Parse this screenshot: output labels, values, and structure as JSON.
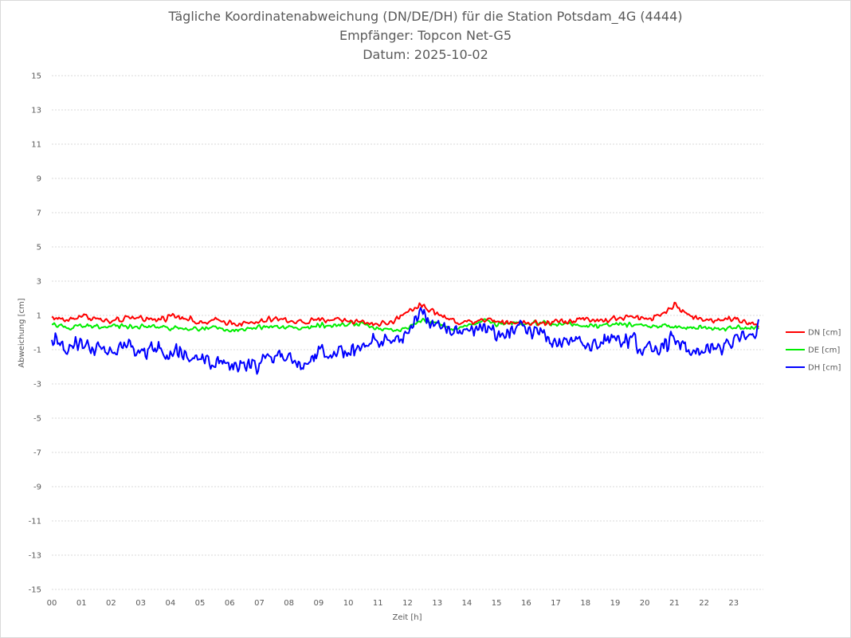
{
  "chart_data": {
    "type": "line",
    "title": "Tägliche Koordinatenabweichung (DN/DE/DH) für die Station Potsdam_4G (4444)",
    "subtitle": "Empfänger: Topcon Net-G5",
    "date_label": "Datum: 2025-10-02",
    "xlabel": "Zeit [h]",
    "ylabel": "Abweichung [cm]",
    "xlim": [
      0,
      24
    ],
    "ylim": [
      -15,
      15
    ],
    "x_ticks": [
      "00",
      "01",
      "02",
      "03",
      "04",
      "05",
      "06",
      "07",
      "08",
      "09",
      "10",
      "11",
      "12",
      "13",
      "14",
      "15",
      "16",
      "17",
      "18",
      "19",
      "20",
      "21",
      "22",
      "23"
    ],
    "y_ticks": [
      15,
      13,
      11,
      9,
      7,
      5,
      3,
      1,
      -1,
      -3,
      -5,
      -7,
      -9,
      -11,
      -13,
      -15
    ],
    "y_tick_labels": [
      "15",
      "13",
      "11",
      "9",
      "7",
      "5",
      "3",
      "1",
      "-1",
      "-3",
      "-5",
      "-7",
      "-9",
      "-11",
      "-13",
      "-15"
    ],
    "grid": "horizontal dotted",
    "legend_position": "right",
    "series": [
      {
        "name": "DN [cm]",
        "color": "#ff0000",
        "x": [
          0,
          0.5,
          1,
          1.5,
          2,
          2.5,
          3,
          3.5,
          4,
          4.5,
          5,
          5.5,
          6,
          6.5,
          7,
          7.5,
          8,
          8.5,
          9,
          9.5,
          10,
          10.5,
          11,
          11.5,
          12,
          12.5,
          13,
          13.5,
          14,
          14.5,
          15,
          15.5,
          16,
          16.5,
          17,
          17.5,
          18,
          18.5,
          19,
          19.5,
          20,
          20.5,
          21,
          21.5,
          22,
          22.5,
          23,
          23.5,
          23.85
        ],
        "y": [
          0.9,
          0.7,
          1.0,
          0.8,
          0.6,
          0.8,
          0.9,
          0.7,
          1.0,
          0.9,
          0.5,
          0.7,
          0.6,
          0.5,
          0.6,
          0.8,
          0.7,
          0.6,
          0.7,
          0.8,
          0.7,
          0.6,
          0.5,
          0.6,
          1.3,
          1.6,
          1.1,
          0.7,
          0.6,
          0.8,
          0.7,
          0.6,
          0.6,
          0.5,
          0.7,
          0.7,
          0.8,
          0.7,
          0.8,
          0.9,
          0.8,
          1.0,
          1.6,
          1.0,
          0.7,
          0.8,
          0.8,
          0.6,
          0.3
        ]
      },
      {
        "name": "DE [cm]",
        "color": "#00ee00",
        "x": [
          0,
          0.5,
          1,
          1.5,
          2,
          2.5,
          3,
          3.5,
          4,
          4.5,
          5,
          5.5,
          6,
          6.5,
          7,
          7.5,
          8,
          8.5,
          9,
          9.5,
          10,
          10.5,
          11,
          11.5,
          12,
          12.5,
          13,
          13.5,
          14,
          14.5,
          15,
          15.5,
          16,
          16.5,
          17,
          17.5,
          18,
          18.5,
          19,
          19.5,
          20,
          20.5,
          21,
          21.5,
          22,
          22.5,
          23,
          23.5,
          23.85
        ],
        "y": [
          0.5,
          0.3,
          0.4,
          0.3,
          0.4,
          0.4,
          0.3,
          0.3,
          0.3,
          0.2,
          0.2,
          0.3,
          0.1,
          0.2,
          0.3,
          0.3,
          0.3,
          0.3,
          0.4,
          0.4,
          0.5,
          0.5,
          0.2,
          0.1,
          0.3,
          0.7,
          0.6,
          0.2,
          0.4,
          0.7,
          0.5,
          0.6,
          0.5,
          0.6,
          0.5,
          0.5,
          0.4,
          0.4,
          0.5,
          0.5,
          0.4,
          0.4,
          0.3,
          0.3,
          0.3,
          0.2,
          0.3,
          0.3,
          0.2
        ]
      },
      {
        "name": "DH [cm]",
        "color": "#0000ff",
        "x": [
          0,
          0.5,
          1,
          1.5,
          2,
          2.5,
          3,
          3.5,
          4,
          4.5,
          5,
          5.5,
          6,
          6.5,
          7,
          7.5,
          8,
          8.5,
          9,
          9.5,
          10,
          10.5,
          11,
          11.5,
          12,
          12.5,
          13,
          13.5,
          14,
          14.5,
          15,
          15.5,
          16,
          16.5,
          17,
          17.5,
          18,
          18.5,
          19,
          19.5,
          20,
          20.5,
          21,
          21.5,
          22,
          22.5,
          23,
          23.5,
          23.85
        ],
        "y": [
          -0.3,
          -0.8,
          -0.6,
          -1.0,
          -1.2,
          -0.8,
          -1.4,
          -0.9,
          -1.2,
          -1.4,
          -1.6,
          -1.8,
          -2.0,
          -1.9,
          -1.7,
          -1.3,
          -1.5,
          -1.8,
          -1.3,
          -1.2,
          -1.0,
          -0.8,
          -0.5,
          -0.6,
          -0.2,
          1.4,
          0.5,
          -0.1,
          0.2,
          0.5,
          -0.2,
          0.1,
          0.3,
          -0.1,
          -0.5,
          -0.5,
          -0.7,
          -0.6,
          -0.4,
          -0.6,
          -1.1,
          -0.9,
          -0.2,
          -1.1,
          -1.0,
          -0.9,
          -0.5,
          0.0,
          0.1
        ]
      }
    ]
  }
}
